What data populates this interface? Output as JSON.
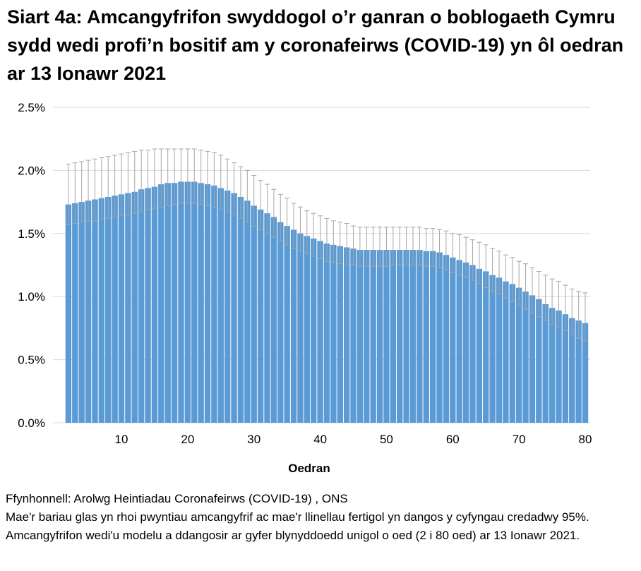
{
  "chart_data": {
    "type": "bar",
    "title": "Siart 4a: Amcangyfrifon swyddogol o’r ganran o boblogaeth Cymru sydd wedi profi’n bositif am y coronafeirws (COVID-19) yn ôl oedran ar 13 Ionawr 2021",
    "xlabel": "Oedran",
    "ylabel": "",
    "ylim": [
      0,
      2.5
    ],
    "yticks": [
      "0.0%",
      "0.5%",
      "1.0%",
      "1.5%",
      "2.0%",
      "2.5%"
    ],
    "xticks": [
      "10",
      "20",
      "30",
      "40",
      "50",
      "60",
      "70",
      "80"
    ],
    "grid": true,
    "bar_color": "#5B9BD5",
    "errorbar_color": "#A5A5A5",
    "x": [
      2,
      3,
      4,
      5,
      6,
      7,
      8,
      9,
      10,
      11,
      12,
      13,
      14,
      15,
      16,
      17,
      18,
      19,
      20,
      21,
      22,
      23,
      24,
      25,
      26,
      27,
      28,
      29,
      30,
      31,
      32,
      33,
      34,
      35,
      36,
      37,
      38,
      39,
      40,
      41,
      42,
      43,
      44,
      45,
      46,
      47,
      48,
      49,
      50,
      51,
      52,
      53,
      54,
      55,
      56,
      57,
      58,
      59,
      60,
      61,
      62,
      63,
      64,
      65,
      66,
      67,
      68,
      69,
      70,
      71,
      72,
      73,
      74,
      75,
      76,
      77,
      78,
      79,
      80
    ],
    "values": [
      1.73,
      1.74,
      1.75,
      1.76,
      1.77,
      1.78,
      1.79,
      1.8,
      1.81,
      1.82,
      1.83,
      1.85,
      1.86,
      1.87,
      1.89,
      1.9,
      1.9,
      1.91,
      1.91,
      1.91,
      1.9,
      1.89,
      1.88,
      1.86,
      1.84,
      1.82,
      1.79,
      1.76,
      1.72,
      1.69,
      1.66,
      1.63,
      1.59,
      1.56,
      1.53,
      1.5,
      1.48,
      1.46,
      1.44,
      1.42,
      1.41,
      1.4,
      1.39,
      1.38,
      1.37,
      1.37,
      1.37,
      1.37,
      1.37,
      1.37,
      1.37,
      1.37,
      1.37,
      1.37,
      1.36,
      1.36,
      1.35,
      1.33,
      1.31,
      1.29,
      1.27,
      1.25,
      1.22,
      1.2,
      1.17,
      1.15,
      1.12,
      1.1,
      1.07,
      1.04,
      1.01,
      0.98,
      0.94,
      0.91,
      0.89,
      0.86,
      0.83,
      0.81,
      0.79
    ],
    "upper": [
      2.05,
      2.06,
      2.07,
      2.08,
      2.09,
      2.1,
      2.11,
      2.12,
      2.13,
      2.14,
      2.15,
      2.16,
      2.16,
      2.17,
      2.17,
      2.17,
      2.17,
      2.17,
      2.17,
      2.17,
      2.16,
      2.15,
      2.14,
      2.12,
      2.09,
      2.06,
      2.03,
      2.0,
      1.96,
      1.92,
      1.89,
      1.85,
      1.81,
      1.78,
      1.74,
      1.71,
      1.68,
      1.66,
      1.64,
      1.62,
      1.6,
      1.59,
      1.58,
      1.56,
      1.55,
      1.55,
      1.55,
      1.55,
      1.55,
      1.55,
      1.55,
      1.55,
      1.55,
      1.55,
      1.54,
      1.54,
      1.53,
      1.52,
      1.5,
      1.49,
      1.47,
      1.45,
      1.43,
      1.41,
      1.38,
      1.36,
      1.33,
      1.31,
      1.28,
      1.26,
      1.23,
      1.2,
      1.17,
      1.14,
      1.12,
      1.09,
      1.06,
      1.04,
      1.03
    ],
    "lower": [
      1.57,
      1.58,
      1.59,
      1.6,
      1.6,
      1.61,
      1.62,
      1.63,
      1.64,
      1.65,
      1.66,
      1.67,
      1.69,
      1.7,
      1.71,
      1.72,
      1.73,
      1.74,
      1.74,
      1.74,
      1.73,
      1.72,
      1.71,
      1.69,
      1.67,
      1.65,
      1.62,
      1.59,
      1.56,
      1.53,
      1.5,
      1.47,
      1.44,
      1.41,
      1.38,
      1.36,
      1.34,
      1.32,
      1.3,
      1.28,
      1.27,
      1.26,
      1.25,
      1.25,
      1.24,
      1.24,
      1.24,
      1.24,
      1.24,
      1.25,
      1.25,
      1.25,
      1.25,
      1.25,
      1.24,
      1.24,
      1.23,
      1.21,
      1.19,
      1.17,
      1.15,
      1.13,
      1.1,
      1.07,
      1.04,
      1.02,
      0.99,
      0.96,
      0.93,
      0.9,
      0.87,
      0.84,
      0.81,
      0.78,
      0.76,
      0.73,
      0.7,
      0.67,
      0.65
    ]
  },
  "notes": {
    "source": "Ffynhonnell: Arolwg Heintiadau Coronafeirws (COVID-19) , ONS",
    "description": "Mae'r bariau glas yn rhoi pwyntiau amcangyfrif ac mae'r llinellau fertigol yn dangos y cyfyngau credadwy 95%. Amcangyfrifon wedi'u modelu a ddangosir ar gyfer blynyddoedd unigol o oed (2 i 80 oed) ar 13 Ionawr 2021."
  }
}
